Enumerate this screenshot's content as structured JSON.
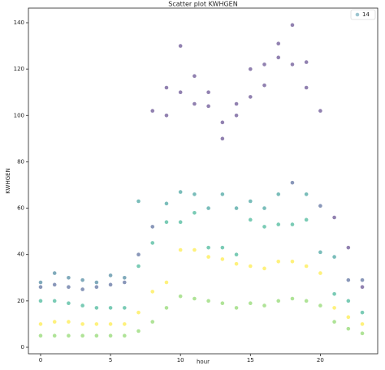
{
  "chart_data": {
    "type": "scatter",
    "title": "Scatter plot KWHGEN",
    "x_label": "hour",
    "y_label": "KWHGEN",
    "xlim": [
      -0.87,
      24.1
    ],
    "ylim": [
      -2.8,
      146.3
    ],
    "xticks": [
      0,
      5,
      10,
      15,
      20
    ],
    "yticks": [
      0,
      20,
      40,
      60,
      80,
      100,
      120,
      140
    ],
    "legend": "upper right",
    "opacity": 0.6,
    "series": [
      {
        "name": "14",
        "color": "#5b9fb0",
        "x": [
          0,
          0,
          0,
          0,
          0,
          1,
          1,
          1,
          1,
          1,
          2,
          2,
          2,
          2,
          2,
          3,
          3,
          3,
          3,
          3,
          4,
          4,
          4,
          4,
          4,
          5,
          5,
          5,
          5,
          5,
          6,
          6,
          6,
          6,
          6,
          7,
          7,
          7,
          7,
          7,
          8,
          8,
          8,
          8,
          8,
          9,
          9,
          9,
          9,
          9,
          9,
          10,
          10,
          10,
          10,
          10,
          10,
          11,
          11,
          11,
          11,
          11,
          11,
          12,
          12,
          12,
          12,
          12,
          12,
          13,
          13,
          13,
          13,
          13,
          13,
          14,
          14,
          14,
          14,
          14,
          14,
          15,
          15,
          15,
          15,
          15,
          15,
          16,
          16,
          16,
          16,
          16,
          16,
          17,
          17,
          17,
          17,
          17,
          17,
          18,
          18,
          18,
          18,
          18,
          18,
          19,
          19,
          19,
          19,
          19,
          19,
          20,
          20,
          20,
          20,
          20,
          21,
          21,
          21,
          21,
          21,
          22,
          22,
          22,
          22,
          22,
          23,
          23,
          23,
          23,
          23
        ],
        "values": [
          26,
          28,
          20,
          10,
          5,
          27,
          32,
          20,
          11,
          5,
          26,
          30,
          19,
          11,
          5,
          25,
          29,
          18,
          10,
          5,
          26,
          28,
          17,
          10,
          5,
          27,
          31,
          17,
          10,
          5,
          28,
          30,
          17,
          10,
          5,
          40,
          63,
          35,
          15,
          7,
          102,
          52,
          45,
          24,
          11,
          112,
          100,
          62,
          54,
          28,
          17,
          130,
          110,
          67,
          54,
          42,
          22,
          117,
          105,
          66,
          58,
          42,
          21,
          110,
          104,
          60,
          43,
          39,
          20,
          97,
          90,
          66,
          43,
          38,
          19,
          105,
          100,
          60,
          40,
          36,
          17,
          120,
          108,
          63,
          55,
          35,
          19,
          122,
          113,
          60,
          52,
          34,
          18,
          131,
          125,
          66,
          53,
          37,
          20,
          139,
          122,
          71,
          53,
          37,
          21,
          123,
          112,
          66,
          55,
          35,
          20,
          102,
          61,
          41,
          32,
          18,
          56,
          39,
          23,
          17,
          11,
          43,
          29,
          20,
          13,
          8,
          29,
          26,
          15,
          10,
          6
        ],
        "colors": [
          "#3b528b",
          "#2c728e",
          "#22a884",
          "#fde725",
          "#7ad151",
          "#3b528b",
          "#2c728e",
          "#22a884",
          "#fde725",
          "#7ad151",
          "#3b528b",
          "#2c728e",
          "#22a884",
          "#fde725",
          "#7ad151",
          "#3b528b",
          "#2c728e",
          "#22a884",
          "#fde725",
          "#7ad151",
          "#3b528b",
          "#2c728e",
          "#22a884",
          "#fde725",
          "#7ad151",
          "#3b528b",
          "#2c728e",
          "#22a884",
          "#fde725",
          "#7ad151",
          "#3b528b",
          "#2c728e",
          "#22a884",
          "#fde725",
          "#7ad151",
          "#3b528b",
          "#21918c",
          "#22a884",
          "#fde725",
          "#7ad151",
          "#472d7b",
          "#3b528b",
          "#22a884",
          "#fde725",
          "#7ad151",
          "#472d7b",
          "#472d7b",
          "#21918c",
          "#22a884",
          "#fde725",
          "#7ad151",
          "#472d7b",
          "#472d7b",
          "#21918c",
          "#22a884",
          "#fde725",
          "#7ad151",
          "#472d7b",
          "#472d7b",
          "#21918c",
          "#22a884",
          "#fde725",
          "#7ad151",
          "#472d7b",
          "#472d7b",
          "#21918c",
          "#22a884",
          "#fde725",
          "#7ad151",
          "#472d7b",
          "#472d7b",
          "#21918c",
          "#22a884",
          "#fde725",
          "#7ad151",
          "#472d7b",
          "#472d7b",
          "#21918c",
          "#22a884",
          "#fde725",
          "#7ad151",
          "#472d7b",
          "#472d7b",
          "#21918c",
          "#22a884",
          "#fde725",
          "#7ad151",
          "#472d7b",
          "#472d7b",
          "#21918c",
          "#22a884",
          "#fde725",
          "#7ad151",
          "#472d7b",
          "#472d7b",
          "#21918c",
          "#22a884",
          "#fde725",
          "#7ad151",
          "#472d7b",
          "#472d7b",
          "#3b528b",
          "#22a884",
          "#fde725",
          "#7ad151",
          "#472d7b",
          "#472d7b",
          "#21918c",
          "#22a884",
          "#fde725",
          "#7ad151",
          "#472d7b",
          "#3b528b",
          "#21918c",
          "#fde725",
          "#7ad151",
          "#472d7b",
          "#21918c",
          "#22a884",
          "#fde725",
          "#7ad151",
          "#472d7b",
          "#3b528b",
          "#22a884",
          "#fde725",
          "#7ad151",
          "#3b528b",
          "#472d7b",
          "#22a884",
          "#fde725",
          "#7ad151"
        ]
      }
    ]
  }
}
